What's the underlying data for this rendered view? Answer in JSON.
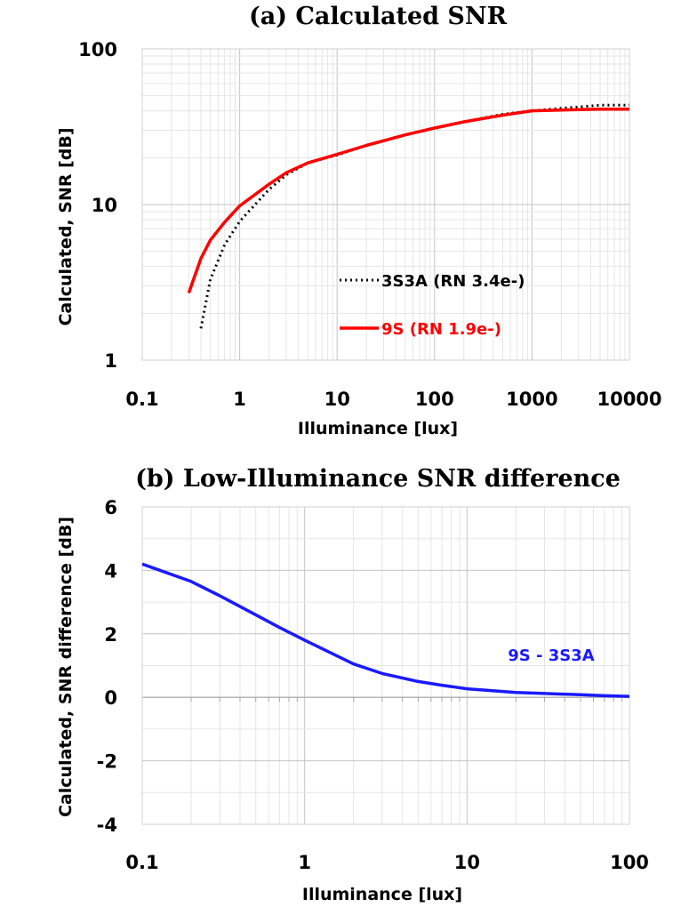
{
  "chart_data": [
    {
      "type": "line",
      "title": "(a) Calculated SNR",
      "xlabel": "Illuminance [lux]",
      "ylabel": "Calculated, SNR [dB]",
      "xscale": "log",
      "yscale": "log",
      "xlim": [
        0.1,
        10000
      ],
      "ylim": [
        1,
        100
      ],
      "xticks": [
        "0.1",
        "1",
        "10",
        "100",
        "1000",
        "10000"
      ],
      "yticks": [
        "1",
        "10",
        "100"
      ],
      "grid": true,
      "legend_position": "center-right",
      "series": [
        {
          "name": "3S3A (RN 3.4e-)",
          "color": "#000000",
          "style": "dotted",
          "x": [
            0.4,
            0.5,
            0.7,
            1,
            2,
            3,
            5,
            10,
            20,
            50,
            100,
            200,
            500,
            1000,
            2000,
            5000,
            10000
          ],
          "y": [
            1.6,
            3.3,
            5.5,
            7.8,
            12.5,
            15.5,
            18.5,
            20.8,
            24,
            28,
            31,
            34,
            38,
            40,
            41.5,
            43.5,
            43.5
          ]
        },
        {
          "name": "9S (RN 1.9e-)",
          "color": "#ff0000",
          "style": "solid",
          "x": [
            0.3,
            0.4,
            0.5,
            0.7,
            1,
            2,
            3,
            5,
            10,
            20,
            50,
            100,
            200,
            500,
            1000,
            2000,
            5000,
            10000
          ],
          "y": [
            2.7,
            4.5,
            5.9,
            7.7,
            9.8,
            13.5,
            16,
            18.5,
            21,
            24,
            28,
            31,
            34,
            37.5,
            40,
            40.5,
            41,
            41
          ]
        }
      ]
    },
    {
      "type": "line",
      "title": "(b) Low-Illuminance SNR difference",
      "xlabel": "Illuminance [lux]",
      "ylabel": "Calculated, SNR difference [dB]",
      "xscale": "log",
      "xlim": [
        0.1,
        100
      ],
      "ylim": [
        -4,
        6
      ],
      "xticks": [
        "0.1",
        "1",
        "10",
        "100"
      ],
      "yticks": [
        "-4",
        "-2",
        "0",
        "2",
        "4",
        "6"
      ],
      "grid": true,
      "series": [
        {
          "name": "9S - 3S3A",
          "color": "#1a1aff",
          "style": "solid",
          "x": [
            0.1,
            0.2,
            0.3,
            0.5,
            0.7,
            1,
            2,
            3,
            5,
            7,
            10,
            20,
            30,
            50,
            70,
            100
          ],
          "y": [
            4.2,
            3.65,
            3.2,
            2.6,
            2.2,
            1.8,
            1.05,
            0.75,
            0.5,
            0.38,
            0.27,
            0.15,
            0.12,
            0.08,
            0.05,
            0.03
          ]
        }
      ]
    }
  ]
}
